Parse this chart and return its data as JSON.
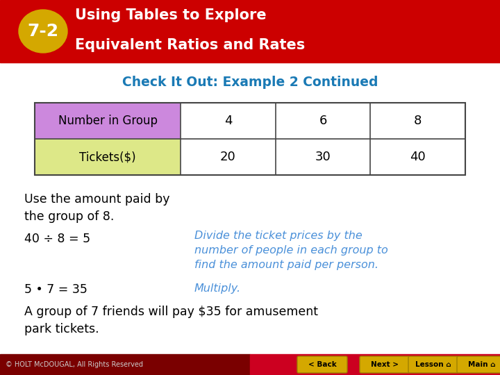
{
  "header_bg": "#cc0000",
  "header_text_line1": "Using Tables to Explore",
  "header_text_line2": "Equivalent Ratios and Rates",
  "header_text_color": "#ffffff",
  "badge_bg": "#d4a800",
  "badge_text": "7-2",
  "badge_text_color": "#ffffff",
  "subtitle": "Check It Out: Example 2 Continued",
  "subtitle_color": "#1a7ab5",
  "table_row1_label": "Number in Group",
  "table_row1_label_bg": "#cc88dd",
  "table_row2_label": "Tickets($)",
  "table_row2_label_bg": "#dde888",
  "table_data_bg": "#ffffff",
  "table_border_color": "#444444",
  "table_row1_values": [
    "4",
    "6",
    "8"
  ],
  "table_row2_values": [
    "20",
    "30",
    "40"
  ],
  "table_text_color": "#000000",
  "body_text1": "Use the amount paid by\nthe group of 8.",
  "body_text2": "40 ÷ 8 = 5",
  "body_text3": "Divide the ticket prices by the\nnumber of people in each group to\nfind the amount paid per person.",
  "body_text4": "5 • 7 = 35",
  "body_text5": "Multiply.",
  "body_text6": "A group of 7 friends will pay $35 for amusement\npark tickets.",
  "italic_color": "#4a90d9",
  "black_color": "#000000",
  "footer_bg_left": "#8b0000",
  "footer_bg_right": "#cc0000",
  "footer_text": "© HOLT McDOUGAL, All Rights Reserved",
  "footer_text_color": "#cccccc",
  "button_labels": [
    "< Back",
    "Next >",
    "Lesson ⌂",
    "Main ⌂"
  ],
  "button_bg": "#d4a800",
  "button_text_color": "#000000"
}
